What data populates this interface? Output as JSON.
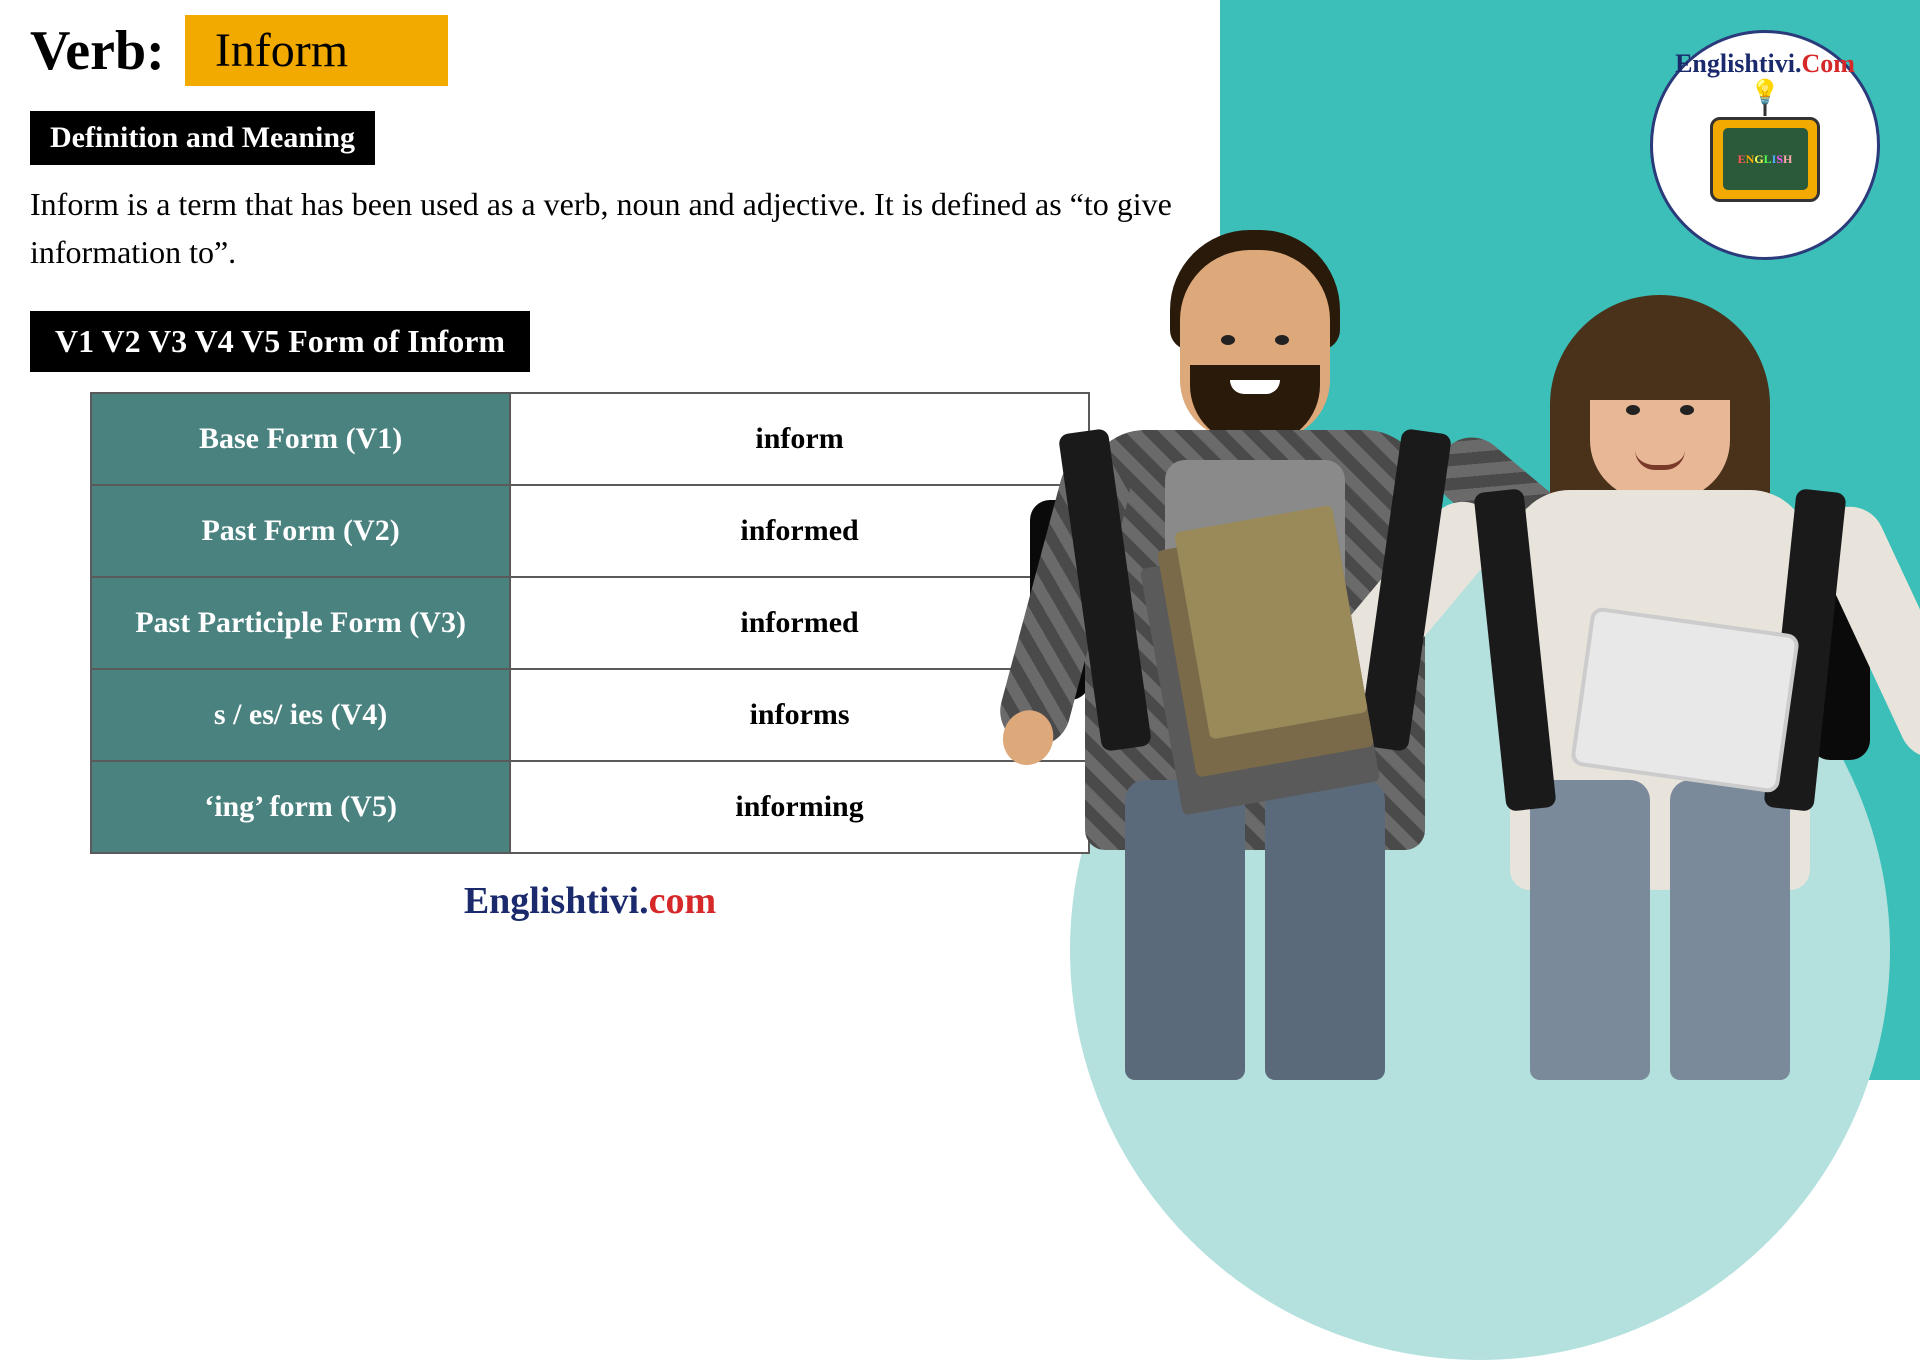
{
  "header": {
    "label": "Verb:",
    "verb": "Inform",
    "verb_box_color": "#f2a900"
  },
  "definition": {
    "section_title": "Definition and Meaning",
    "text": "Inform is a term that has been used as a verb, noun and adjective. It is defined as “to give information to”."
  },
  "forms": {
    "section_title": "V1 V2 V3 V4 V5 Form of Inform",
    "rows": [
      {
        "label": "Base Form (V1)",
        "value": "inform"
      },
      {
        "label": "Past Form (V2)",
        "value": "informed"
      },
      {
        "label": "Past Participle Form (V3)",
        "value": "informed"
      },
      {
        "label": "s / es/ ies (V4)",
        "value": "informs"
      },
      {
        "label": "‘ing’ form (V5)",
        "value": "informing"
      }
    ],
    "label_bg": "#4a8280",
    "label_color": "#ffffff",
    "value_bg": "#ffffff",
    "value_color": "#000000",
    "border_color": "#5a5a5a"
  },
  "brand": {
    "main": "Englishtivi",
    "dot": ".",
    "tld": "com",
    "main_color": "#1a2a6c",
    "tld_color": "#d62828"
  },
  "logo": {
    "text_main": "Englishtivi",
    "text_dot": ".",
    "text_tld": "Com",
    "tv_text": "ENGLISH"
  },
  "colors": {
    "right_panel": "#3cbfb8",
    "circle": "#b4e1de",
    "section_bg": "#000000",
    "section_fg": "#ffffff"
  }
}
